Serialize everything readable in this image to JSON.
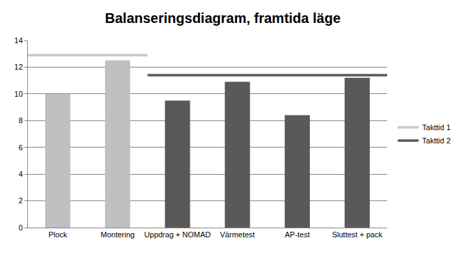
{
  "chart_data": {
    "type": "bar",
    "title": "Balanseringsdiagram, framtida läge",
    "categories": [
      "Plock",
      "Montering",
      "Uppdrag + NOMAD",
      "Värmetest",
      "AP-test",
      "Sluttest + pack"
    ],
    "values": [
      10,
      12.5,
      9.5,
      10.9,
      8.4,
      11.2
    ],
    "colors": [
      "#bfbfbf",
      "#bfbfbf",
      "#595959",
      "#595959",
      "#595959",
      "#595959"
    ],
    "series": [
      {
        "name": "Takttid 1",
        "type": "line",
        "color": "#c8c8c8",
        "line_style": "solid",
        "values": [
          12.9,
          12.9,
          null,
          null,
          null,
          null
        ]
      },
      {
        "name": "Takttid 2",
        "type": "line",
        "color": "#595959",
        "line_style": "solid",
        "values": [
          null,
          null,
          11.4,
          11.4,
          11.4,
          11.4
        ]
      }
    ],
    "ylim": [
      0,
      14
    ],
    "yticks": [
      0,
      2,
      4,
      6,
      8,
      10,
      12,
      14
    ],
    "grid": true,
    "legend": "right"
  }
}
